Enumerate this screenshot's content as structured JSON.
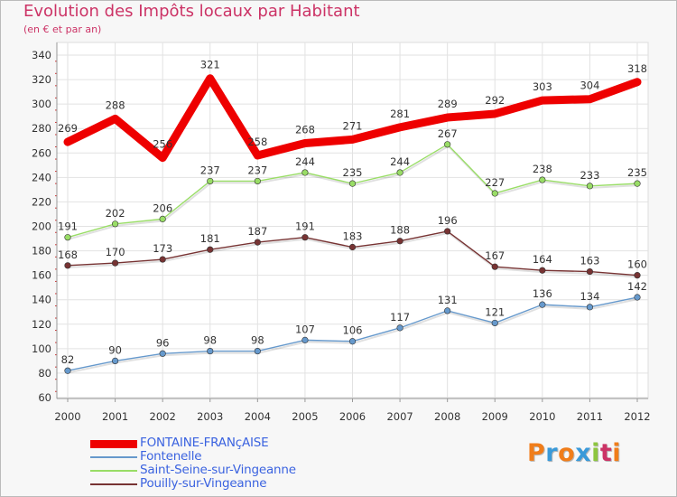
{
  "chart": {
    "title": "Evolution des Impôts locaux par Habitant",
    "subtitle": "(en € et par an)"
  },
  "brand": {
    "logo_text": "Proxiti",
    "letter_colors": [
      "#f07d1a",
      "#3a9ad9",
      "#f07d1a",
      "#3a9ad9",
      "#8dc63f",
      "#cc3366",
      "#f07d1a"
    ]
  },
  "chart_data": {
    "type": "line",
    "title": "Evolution des Impôts locaux par Habitant",
    "subtitle": "(en € et par an)",
    "x": [
      "2000",
      "2001",
      "2002",
      "2003",
      "2004",
      "2005",
      "2006",
      "2007",
      "2008",
      "2009",
      "2010",
      "2011",
      "2012"
    ],
    "ylim": [
      60,
      340
    ],
    "yticks": [
      60,
      80,
      100,
      120,
      140,
      160,
      180,
      200,
      220,
      240,
      260,
      280,
      300,
      320,
      340
    ],
    "grid": true,
    "legend_position": "bottom-left",
    "series": [
      {
        "name": "FONTAINE-FRANçAISE",
        "color": "#ee0000",
        "values": [
          269,
          288,
          256,
          321,
          258,
          268,
          271,
          281,
          289,
          292,
          303,
          304,
          318
        ]
      },
      {
        "name": "Fontenelle",
        "color": "#6699cc",
        "values": [
          82,
          90,
          96,
          98,
          98,
          107,
          106,
          117,
          131,
          121,
          136,
          134,
          142
        ]
      },
      {
        "name": "Saint-Seine-sur-Vingeanne",
        "color": "#99dd66",
        "values": [
          191,
          202,
          206,
          237,
          237,
          244,
          235,
          244,
          267,
          227,
          238,
          233,
          235
        ]
      },
      {
        "name": "Pouilly-sur-Vingeanne",
        "color": "#773333",
        "values": [
          168,
          170,
          173,
          181,
          187,
          191,
          183,
          188,
          196,
          167,
          164,
          163,
          160
        ]
      }
    ]
  }
}
